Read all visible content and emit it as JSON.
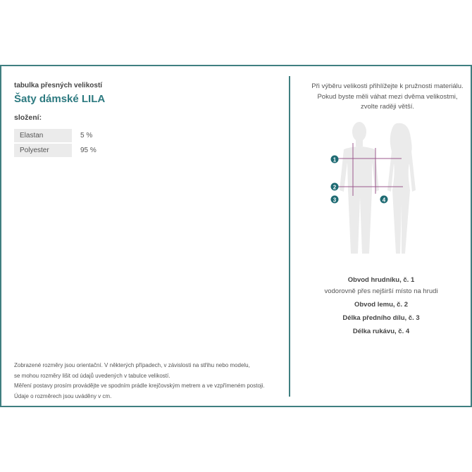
{
  "header": {
    "subtitle": "tabulka přesných velikostí",
    "title": "Šaty dámské LILA"
  },
  "composition": {
    "label": "složení:",
    "rows": [
      {
        "material": "Elastan",
        "percent": "5 %"
      },
      {
        "material": "Polyester",
        "percent": "95 %"
      }
    ]
  },
  "notes": [
    "Zobrazené rozměry jsou orientační. V některých případech, v závislosti na střihu nebo modelu,",
    "se mohou rozměry lišit od údajů uvedených v tabulce velikostí.",
    "Měření postavy prosím provádějte ve spodním prádle krejčovským metrem a ve vzpřímeném postoji.",
    "Údaje o rozměrech jsou uváděny v cm."
  ],
  "intro": [
    "Při výběru velikosti přihlížejte k pružnosti materiálu.",
    "Pokud byste měli váhat mezi dvěma velikostmi,",
    "zvolte raději větší."
  ],
  "markers": [
    "1",
    "2",
    "3",
    "4"
  ],
  "legend": {
    "m1_title": "Obvod hrudníku, č. 1",
    "m1_desc": "vodorovně přes nejširší místo na hrudi",
    "m2_title": "Obvod lemu, č. 2",
    "m3_title": "Délka předního dílu, č. 3",
    "m4_title": "Délka rukávu, č. 4"
  },
  "colors": {
    "accent": "#2d7a80",
    "frame": "#3f7f80",
    "measure_line": "#9b5a8c",
    "silhouette": "#ebebeb"
  }
}
